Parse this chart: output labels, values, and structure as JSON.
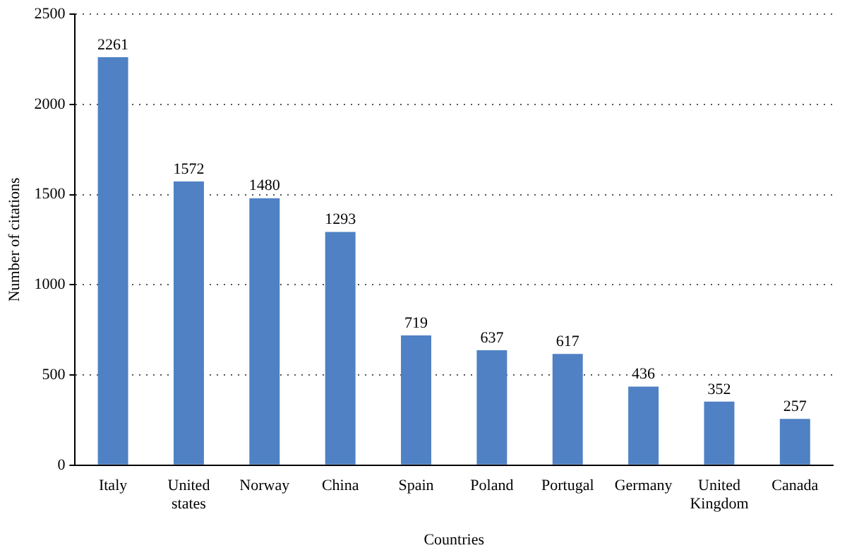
{
  "chart_data": {
    "type": "bar",
    "xlabel": "Countries",
    "ylabel": "Number of citations",
    "categories": [
      "Italy",
      "United states",
      "Norway",
      "China",
      "Spain",
      "Poland",
      "Portugal",
      "Germany",
      "United Kingdom",
      "Canada"
    ],
    "values": [
      2261,
      1572,
      1480,
      1293,
      719,
      637,
      617,
      436,
      352,
      257
    ],
    "color": "#4f81c4",
    "ylim": [
      0,
      2500
    ],
    "yticks": [
      0,
      500,
      1000,
      1500,
      2000,
      2500
    ],
    "grid": "y",
    "data_labels": true
  }
}
